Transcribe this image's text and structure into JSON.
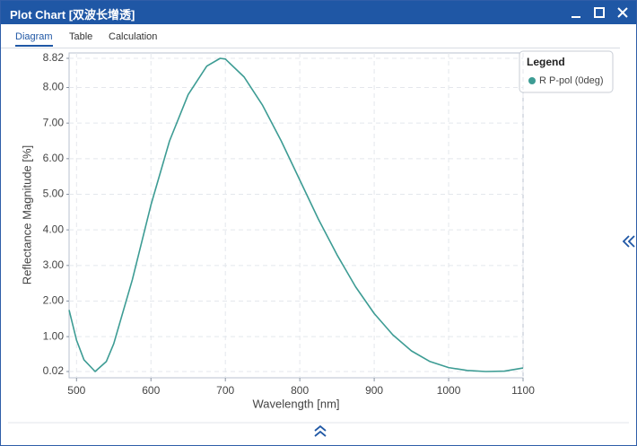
{
  "window": {
    "title": "Plot Chart [双波长增透]"
  },
  "tabs": [
    "Diagram",
    "Table",
    "Calculation"
  ],
  "chart_data": {
    "type": "line",
    "xlabel": "Wavelength [nm]",
    "ylabel": "Reflectance Magnitude [%]",
    "legend_title": "Legend",
    "x": [
      490,
      500,
      510,
      525,
      540,
      550,
      575,
      600,
      625,
      650,
      675,
      693,
      700,
      725,
      750,
      775,
      800,
      825,
      850,
      875,
      900,
      925,
      950,
      975,
      1000,
      1025,
      1050,
      1075,
      1100
    ],
    "series": [
      {
        "name": "R P-pol (0deg)",
        "color": "#3d9c94",
        "values": [
          1.75,
          0.9,
          0.35,
          0.02,
          0.3,
          0.8,
          2.6,
          4.7,
          6.5,
          7.8,
          8.6,
          8.82,
          8.8,
          8.3,
          7.5,
          6.5,
          5.4,
          4.3,
          3.3,
          2.4,
          1.65,
          1.05,
          0.6,
          0.3,
          0.13,
          0.05,
          0.02,
          0.03,
          0.12
        ]
      }
    ],
    "xlim": [
      490,
      1100
    ],
    "ylim": [
      0.02,
      8.82
    ],
    "xticks": [
      500,
      600,
      700,
      800,
      900,
      1000,
      1100
    ],
    "yticks": [
      0.02,
      {
        "value": 1,
        "label": "1.00"
      },
      {
        "value": 2,
        "label": "2.00"
      },
      {
        "value": 3,
        "label": "3.00"
      },
      {
        "value": 4,
        "label": "4.00"
      },
      {
        "value": 5,
        "label": "5.00"
      },
      {
        "value": 6,
        "label": "6.00"
      },
      {
        "value": 7,
        "label": "7.00"
      },
      {
        "value": 8,
        "label": "8.00"
      },
      8.82
    ],
    "grid": true
  }
}
